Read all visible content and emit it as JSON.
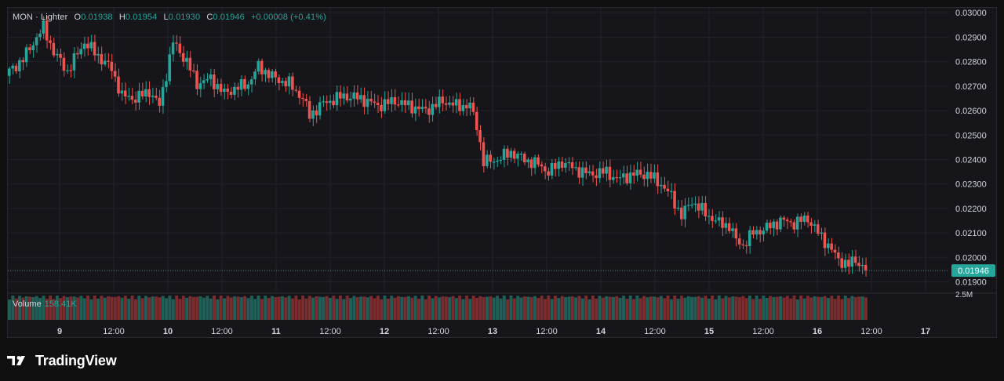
{
  "legend": {
    "symbol": "MON · Lighter",
    "o_label": "O",
    "o_value": "0.01938",
    "h_label": "H",
    "h_value": "0.01954",
    "l_label": "L",
    "l_value": "0.01930",
    "c_label": "C",
    "c_value": "0.01946",
    "change": "+0.00008 (+0.41%)"
  },
  "volume_legend": {
    "label": "Volume",
    "value": "158.41K"
  },
  "branding": {
    "name": "TradingView"
  },
  "colors": {
    "up": "#26a69a",
    "down": "#ef5350",
    "background": "#15151a",
    "grid": "#22222a",
    "text": "#d1d4dc"
  },
  "chart_data": {
    "type": "candlestick",
    "y_tick_labels": [
      "0.03000",
      "0.02900",
      "0.02800",
      "0.02700",
      "0.02600",
      "0.02500",
      "0.02400",
      "0.02300",
      "0.02200",
      "0.02100",
      "0.02000",
      "0.01900"
    ],
    "ylim": [
      0.0186,
      0.0302
    ],
    "x_tick_labels": [
      "9",
      "12:00",
      "10",
      "12:00",
      "11",
      "12:00",
      "12",
      "12:00",
      "13",
      "12:00",
      "14",
      "12:00",
      "15",
      "12:00",
      "16",
      "12:00",
      "17"
    ],
    "last_price": "0.01946",
    "volume_axis_label": "2.5M",
    "price_path": [
      [
        0,
        0.0276
      ],
      [
        4,
        0.0281
      ],
      [
        8,
        0.029
      ],
      [
        10,
        0.0294
      ],
      [
        13,
        0.0284
      ],
      [
        17,
        0.0276
      ],
      [
        22,
        0.0288
      ],
      [
        27,
        0.0281
      ],
      [
        30,
        0.0277
      ],
      [
        33,
        0.0266
      ],
      [
        37,
        0.0265
      ],
      [
        41,
        0.0268
      ],
      [
        44,
        0.0262
      ],
      [
        48,
        0.0288
      ],
      [
        52,
        0.028
      ],
      [
        55,
        0.0271
      ],
      [
        59,
        0.0273
      ],
      [
        63,
        0.0267
      ],
      [
        66,
        0.0269
      ],
      [
        70,
        0.0271
      ],
      [
        73,
        0.0278
      ],
      [
        78,
        0.0273
      ],
      [
        82,
        0.0271
      ],
      [
        86,
        0.0265
      ],
      [
        88,
        0.0258
      ],
      [
        92,
        0.0263
      ],
      [
        98,
        0.0266
      ],
      [
        103,
        0.0265
      ],
      [
        108,
        0.0262
      ],
      [
        113,
        0.0264
      ],
      [
        117,
        0.0262
      ],
      [
        122,
        0.026
      ],
      [
        127,
        0.0264
      ],
      [
        131,
        0.0262
      ],
      [
        135,
        0.0262
      ],
      [
        137,
        0.0254
      ],
      [
        139,
        0.0239
      ],
      [
        143,
        0.024
      ],
      [
        147,
        0.0243
      ],
      [
        151,
        0.024
      ],
      [
        155,
        0.0238
      ],
      [
        158,
        0.0235
      ],
      [
        162,
        0.0239
      ],
      [
        166,
        0.0236
      ],
      [
        170,
        0.0234
      ],
      [
        175,
        0.0235
      ],
      [
        178,
        0.0232
      ],
      [
        183,
        0.0234
      ],
      [
        187,
        0.0234
      ],
      [
        191,
        0.023
      ],
      [
        194,
        0.0225
      ],
      [
        197,
        0.0217
      ],
      [
        200,
        0.0223
      ],
      [
        204,
        0.0218
      ],
      [
        208,
        0.0214
      ],
      [
        211,
        0.0213
      ],
      [
        213,
        0.0207
      ],
      [
        215,
        0.0205
      ],
      [
        218,
        0.021
      ],
      [
        222,
        0.0212
      ],
      [
        226,
        0.0215
      ],
      [
        230,
        0.0214
      ],
      [
        234,
        0.0216
      ],
      [
        237,
        0.021
      ],
      [
        240,
        0.0205
      ],
      [
        243,
        0.0199
      ],
      [
        246,
        0.0197
      ],
      [
        248,
        0.0199
      ],
      [
        251,
        0.0195
      ]
    ]
  }
}
